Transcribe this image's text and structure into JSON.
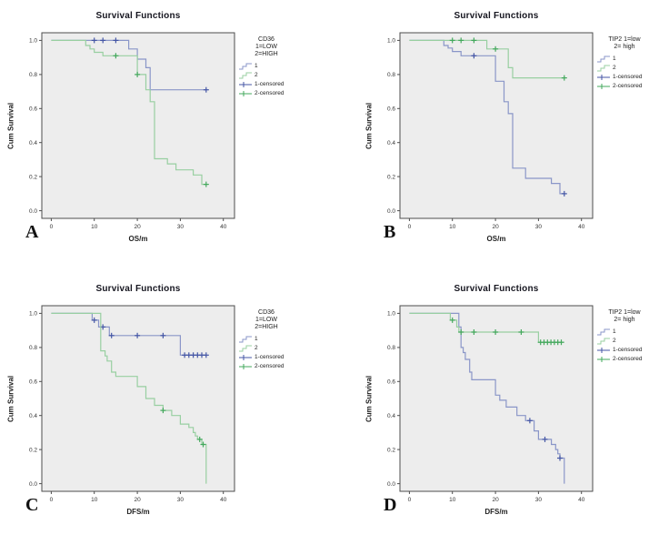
{
  "colors": {
    "series1_line": "#8a96c8",
    "series2_line": "#98cfa1",
    "series1_censor": "#4456a5",
    "series2_censor": "#43a85c",
    "plot_bg": "#ededed",
    "plot_border": "#4d4d4d",
    "title": "#15151f",
    "tick": "#333333"
  },
  "chart_data": [
    {
      "type": "line",
      "subtype": "kaplan-meier-step",
      "title": "Survival Functions",
      "xlabel": "OS/m",
      "ylabel": "Cum Survival",
      "letter": "A",
      "xlim": [
        -2.2,
        42.6
      ],
      "ylim": [
        -0.045,
        1.045
      ],
      "xticks": [
        "0",
        "10",
        "20",
        "30",
        "40"
      ],
      "yticks": [
        "0.0",
        "0.2",
        "0.4",
        "0.6",
        "0.8",
        "1.0"
      ],
      "legend_title": [
        "CD36",
        "1=LOW",
        "2=HIGH"
      ],
      "legend_entries": [
        "1",
        "2",
        "1-censored",
        "2-censored"
      ],
      "series": [
        {
          "name": "1",
          "steps": [
            [
              0,
              1.0
            ],
            [
              18,
              0.95
            ],
            [
              20,
              0.89
            ],
            [
              22,
              0.84
            ],
            [
              23,
              0.71
            ],
            [
              36,
              0.71
            ]
          ],
          "censored": [
            [
              10,
              1.0
            ],
            [
              12,
              1.0
            ],
            [
              15,
              1.0
            ],
            [
              36,
              0.71
            ]
          ]
        },
        {
          "name": "2",
          "steps": [
            [
              0,
              1.0
            ],
            [
              8,
              0.97
            ],
            [
              9,
              0.95
            ],
            [
              10,
              0.93
            ],
            [
              12,
              0.91
            ],
            [
              20,
              0.8
            ],
            [
              22,
              0.71
            ],
            [
              23,
              0.64
            ],
            [
              24,
              0.305
            ],
            [
              27,
              0.275
            ],
            [
              29,
              0.24
            ],
            [
              33,
              0.21
            ],
            [
              35,
              0.155
            ],
            [
              36,
              0.155
            ]
          ],
          "censored": [
            [
              15,
              0.91
            ],
            [
              20,
              0.8
            ],
            [
              36,
              0.155
            ]
          ]
        }
      ]
    },
    {
      "type": "line",
      "subtype": "kaplan-meier-step",
      "title": "Survival Functions",
      "xlabel": "OS/m",
      "ylabel": "Cum Survival",
      "letter": "B",
      "xlim": [
        -2.2,
        42.6
      ],
      "ylim": [
        -0.045,
        1.045
      ],
      "xticks": [
        "0",
        "10",
        "20",
        "30",
        "40"
      ],
      "yticks": [
        "0.0",
        "0.2",
        "0.4",
        "0.6",
        "0.8",
        "1.0"
      ],
      "legend_title": [
        "TIP2 1=low",
        "2= high"
      ],
      "legend_entries": [
        "1",
        "2",
        "1-censored",
        "2-censored"
      ],
      "series": [
        {
          "name": "1",
          "steps": [
            [
              0,
              1.0
            ],
            [
              8,
              0.97
            ],
            [
              9,
              0.955
            ],
            [
              10,
              0.935
            ],
            [
              12,
              0.91
            ],
            [
              20,
              0.76
            ],
            [
              22,
              0.64
            ],
            [
              23,
              0.57
            ],
            [
              24,
              0.25
            ],
            [
              27,
              0.19
            ],
            [
              33,
              0.16
            ],
            [
              35,
              0.1
            ],
            [
              36,
              0.1
            ]
          ],
          "censored": [
            [
              15,
              0.91
            ],
            [
              36,
              0.1
            ]
          ]
        },
        {
          "name": "2",
          "steps": [
            [
              0,
              1.0
            ],
            [
              18,
              0.95
            ],
            [
              23,
              0.84
            ],
            [
              24,
              0.78
            ],
            [
              36,
              0.78
            ]
          ],
          "censored": [
            [
              10,
              1.0
            ],
            [
              12,
              1.0
            ],
            [
              15,
              1.0
            ],
            [
              20,
              0.95
            ],
            [
              36,
              0.78
            ]
          ]
        }
      ]
    },
    {
      "type": "line",
      "subtype": "kaplan-meier-step",
      "title": "Survival Functions",
      "xlabel": "DFS/m",
      "ylabel": "Cum Survival",
      "letter": "C",
      "xlim": [
        -2.2,
        42.6
      ],
      "ylim": [
        -0.045,
        1.045
      ],
      "xticks": [
        "0",
        "10",
        "20",
        "30",
        "40"
      ],
      "yticks": [
        "0.0",
        "0.2",
        "0.4",
        "0.6",
        "0.8",
        "1.0"
      ],
      "legend_title": [
        "CD36",
        "1=LOW",
        "2=HIGH"
      ],
      "legend_entries": [
        "1",
        "2",
        "1-censored",
        "2-censored"
      ],
      "series": [
        {
          "name": "1",
          "steps": [
            [
              0,
              1.0
            ],
            [
              9.5,
              0.96
            ],
            [
              11,
              0.92
            ],
            [
              13.5,
              0.87
            ],
            [
              30,
              0.755
            ],
            [
              36,
              0.755
            ]
          ],
          "censored": [
            [
              10,
              0.96
            ],
            [
              12,
              0.92
            ],
            [
              14,
              0.87
            ],
            [
              20,
              0.87
            ],
            [
              26,
              0.87
            ],
            [
              31,
              0.755
            ],
            [
              32,
              0.755
            ],
            [
              33,
              0.755
            ],
            [
              34,
              0.755
            ],
            [
              35,
              0.755
            ],
            [
              36,
              0.755
            ]
          ]
        },
        {
          "name": "2",
          "steps": [
            [
              0,
              1.0
            ],
            [
              11.5,
              0.78
            ],
            [
              12.5,
              0.75
            ],
            [
              13,
              0.72
            ],
            [
              14,
              0.655
            ],
            [
              15,
              0.63
            ],
            [
              20,
              0.57
            ],
            [
              22,
              0.5
            ],
            [
              24,
              0.46
            ],
            [
              26,
              0.43
            ],
            [
              28,
              0.4
            ],
            [
              30,
              0.35
            ],
            [
              32,
              0.33
            ],
            [
              33,
              0.3
            ],
            [
              33.5,
              0.28
            ],
            [
              34,
              0.26
            ],
            [
              35,
              0.23
            ],
            [
              36,
              0.0
            ]
          ],
          "censored": [
            [
              26,
              0.43
            ],
            [
              34.5,
              0.26
            ],
            [
              35.3,
              0.23
            ]
          ]
        }
      ]
    },
    {
      "type": "line",
      "subtype": "kaplan-meier-step",
      "title": "Survival Functions",
      "xlabel": "DFS/m",
      "ylabel": "Cum Survival",
      "letter": "D",
      "xlim": [
        -2.2,
        42.6
      ],
      "ylim": [
        -0.045,
        1.045
      ],
      "xticks": [
        "0",
        "10",
        "20",
        "30",
        "40"
      ],
      "yticks": [
        "0.0",
        "0.2",
        "0.4",
        "0.6",
        "0.8",
        "1.0"
      ],
      "legend_title": [
        "TIP2 1=low",
        "2= high"
      ],
      "legend_entries": [
        "1",
        "2",
        "1-censored",
        "2-censored"
      ],
      "series": [
        {
          "name": "1",
          "steps": [
            [
              0,
              1.0
            ],
            [
              11.5,
              0.92
            ],
            [
              12,
              0.8
            ],
            [
              12.5,
              0.77
            ],
            [
              13,
              0.73
            ],
            [
              14,
              0.655
            ],
            [
              14.5,
              0.61
            ],
            [
              20,
              0.52
            ],
            [
              21,
              0.49
            ],
            [
              22.5,
              0.45
            ],
            [
              25,
              0.4
            ],
            [
              27,
              0.37
            ],
            [
              29,
              0.31
            ],
            [
              30,
              0.26
            ],
            [
              33,
              0.23
            ],
            [
              34,
              0.2
            ],
            [
              34.5,
              0.175
            ],
            [
              35,
              0.15
            ],
            [
              36,
              0.0
            ]
          ],
          "censored": [
            [
              28,
              0.37
            ],
            [
              31.5,
              0.26
            ],
            [
              35,
              0.15
            ]
          ]
        },
        {
          "name": "2",
          "steps": [
            [
              0,
              1.0
            ],
            [
              9.5,
              0.96
            ],
            [
              11,
              0.92
            ],
            [
              11.5,
              0.89
            ],
            [
              30,
              0.83
            ],
            [
              36,
              0.83
            ]
          ],
          "censored": [
            [
              10,
              0.96
            ],
            [
              12,
              0.89
            ],
            [
              15,
              0.89
            ],
            [
              20,
              0.89
            ],
            [
              26,
              0.89
            ],
            [
              30.5,
              0.83
            ],
            [
              31.3,
              0.83
            ],
            [
              32.1,
              0.83
            ],
            [
              32.9,
              0.83
            ],
            [
              33.7,
              0.83
            ],
            [
              34.5,
              0.83
            ],
            [
              35.3,
              0.83
            ]
          ]
        }
      ]
    }
  ]
}
